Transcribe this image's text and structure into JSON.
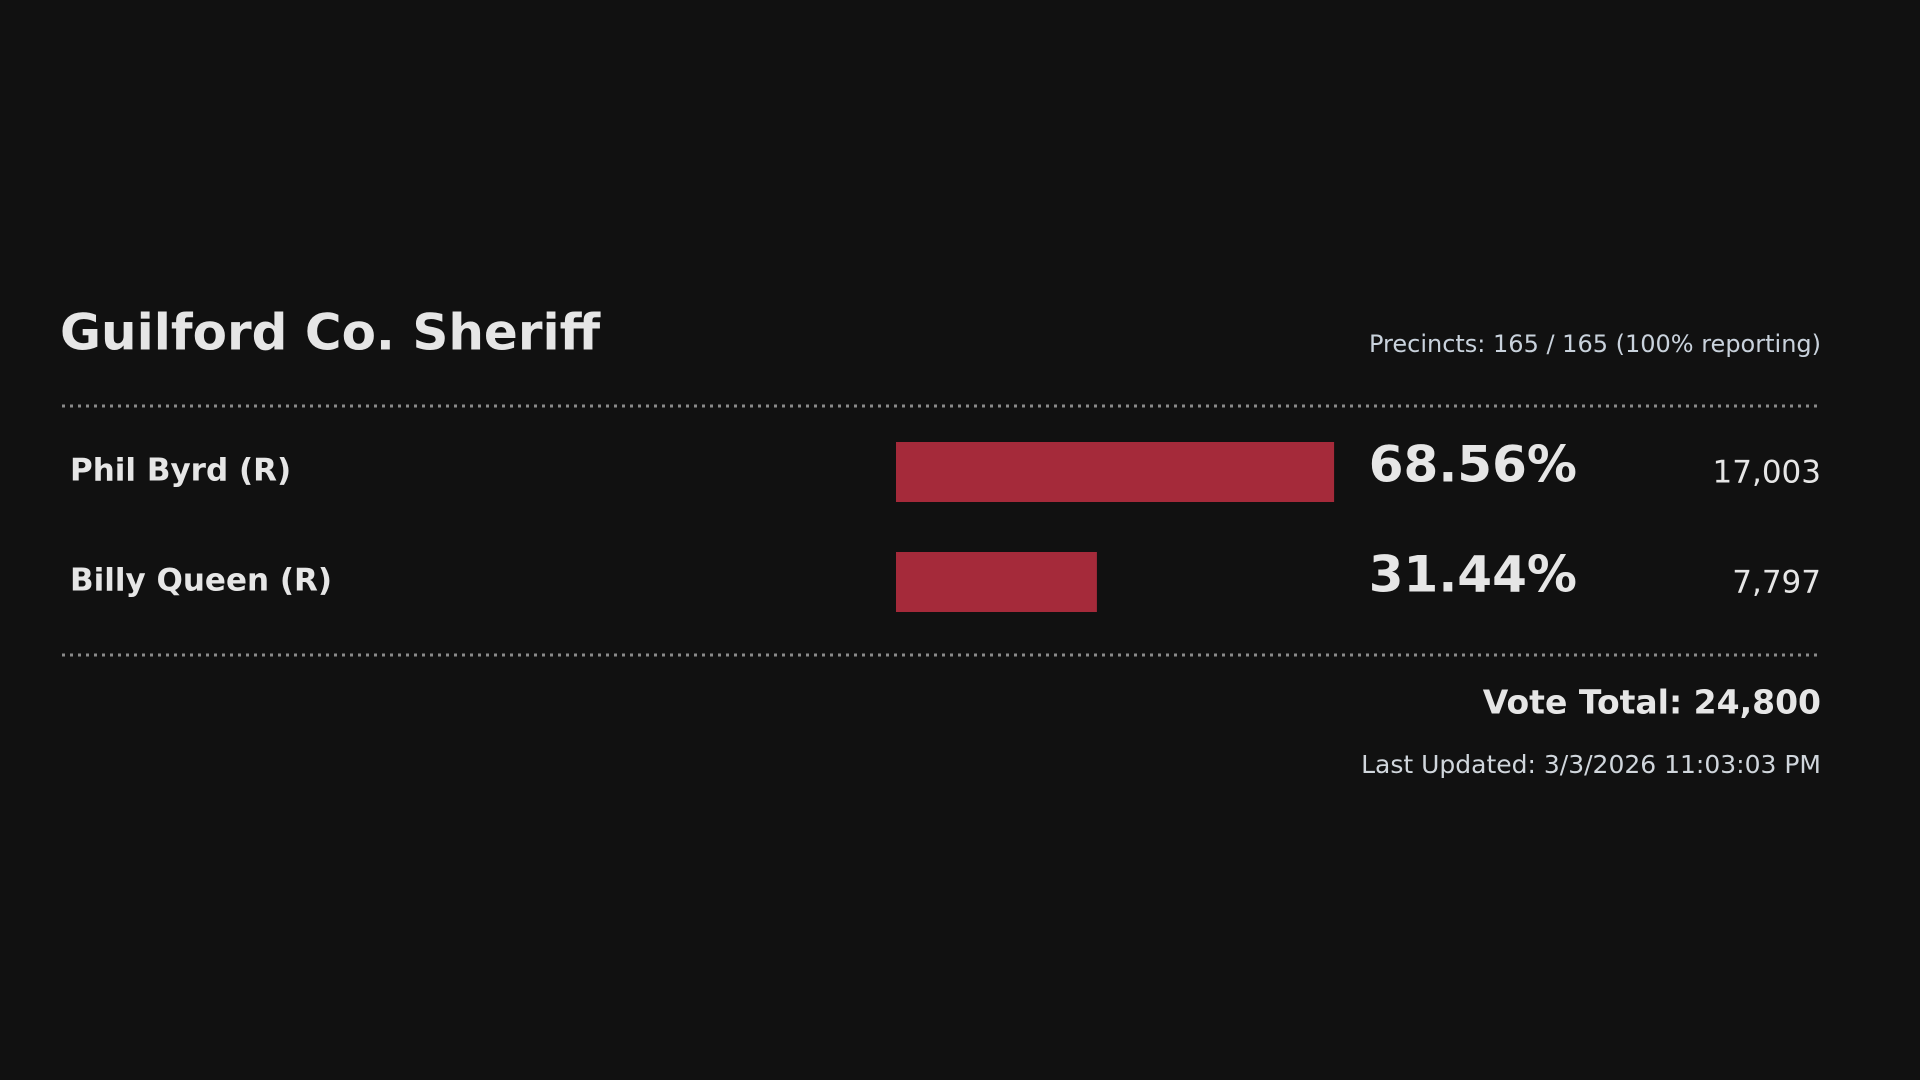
{
  "chart_data": {
    "type": "bar",
    "title": "Guilford Co. Sheriff",
    "subtitle": "Precincts: 165 / 165 (100% reporting)",
    "categories": [
      "Phil Byrd (R)",
      "Billy Queen (R)"
    ],
    "values": [
      68.56,
      31.44
    ],
    "value_labels": [
      "68.56%",
      "31.44%"
    ],
    "color": "#a52a3a",
    "votes": [
      17003,
      7797
    ],
    "vote_labels": [
      "17,003",
      "7,797"
    ],
    "vote_total": "Vote Total: 24,800",
    "last_updated": "Last Updated: 3/3/2026 11:03:03 PM"
  }
}
